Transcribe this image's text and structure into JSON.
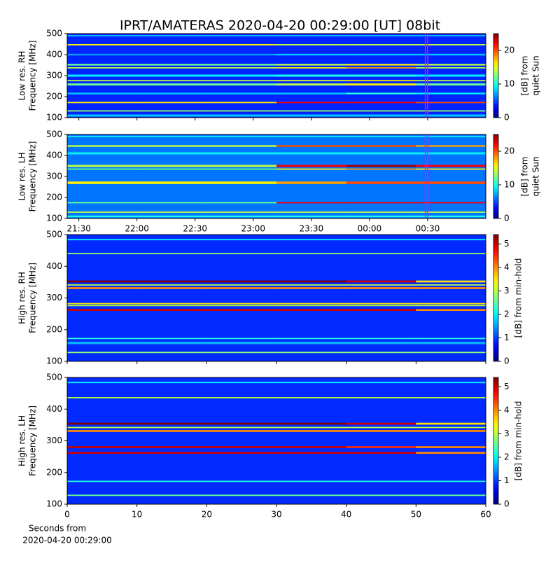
{
  "chart_data": [
    {
      "type": "heatmap",
      "title": "IPRT/AMATERAS 2020-04-20 00:29:00 [UT]   08bit",
      "ylabel": [
        "Low res. RH",
        "Frequency [MHz]"
      ],
      "sharex": 1,
      "xlim": [
        21.4,
        25.0
      ],
      "ylim": [
        100,
        500
      ],
      "yticks": [
        100,
        200,
        300,
        400,
        500
      ],
      "zlim": [
        0,
        25
      ],
      "zticks": [
        0,
        10,
        20
      ],
      "zlabel": [
        "[dB] from",
        "quiet Sun"
      ],
      "highlight": [
        24.48,
        24.5
      ],
      "highlight_color": "#ff00ff",
      "background": 4,
      "bands": [
        {
          "freq": 490,
          "width": 6,
          "values": [
            8,
            8,
            8,
            8,
            8,
            8
          ]
        },
        {
          "freq": 447,
          "width": 6,
          "values": [
            16,
            16,
            16,
            14,
            14,
            14
          ]
        },
        {
          "freq": 400,
          "width": 8,
          "values": [
            7,
            7,
            7,
            8,
            8,
            8
          ]
        },
        {
          "freq": 352,
          "width": 8,
          "values": [
            12,
            12,
            12,
            14,
            16,
            14
          ]
        },
        {
          "freq": 337,
          "width": 6,
          "values": [
            14,
            14,
            14,
            16,
            18,
            14
          ]
        },
        {
          "freq": 300,
          "width": 10,
          "values": [
            9,
            9,
            9,
            10,
            10,
            9
          ]
        },
        {
          "freq": 276,
          "width": 6,
          "values": [
            14,
            14,
            14,
            15,
            16,
            14
          ]
        },
        {
          "freq": 258,
          "width": 10,
          "values": [
            12,
            12,
            12,
            14,
            16,
            12
          ]
        },
        {
          "freq": 215,
          "width": 8,
          "values": [
            8,
            8,
            8,
            8,
            10,
            9
          ]
        },
        {
          "freq": 172,
          "width": 6,
          "values": [
            16,
            16,
            16,
            22,
            22,
            20
          ]
        },
        {
          "freq": 132,
          "width": 6,
          "values": [
            13,
            13,
            13,
            13,
            13,
            13
          ]
        },
        {
          "freq": 110,
          "width": 10,
          "values": [
            8,
            8,
            8,
            8,
            8,
            8
          ]
        }
      ]
    },
    {
      "type": "heatmap",
      "ylabel": [
        "Low res. LH",
        "Frequency [MHz]"
      ],
      "xlim": [
        21.4,
        25.0
      ],
      "xticks": [
        {
          "value": 21.5,
          "label": "21:30"
        },
        {
          "value": 22,
          "label": "22:00"
        },
        {
          "value": 22.5,
          "label": "22:30"
        },
        {
          "value": 23,
          "label": "23:00"
        },
        {
          "value": 23.5,
          "label": "23:30"
        },
        {
          "value": 24,
          "label": "00:00"
        },
        {
          "value": 24.5,
          "label": "00:30"
        }
      ],
      "ylim": [
        100,
        500
      ],
      "yticks": [
        100,
        200,
        300,
        400,
        500
      ],
      "zlim": [
        0,
        25
      ],
      "zticks": [
        0,
        10,
        20
      ],
      "zlabel": [
        "[dB] from",
        "quiet Sun"
      ],
      "highlight": [
        24.48,
        24.5
      ],
      "highlight_color": "#ff00ff",
      "background": 6,
      "bands": [
        {
          "freq": 490,
          "width": 6,
          "values": [
            9,
            9,
            9,
            9,
            9,
            9
          ]
        },
        {
          "freq": 445,
          "width": 8,
          "values": [
            14,
            14,
            14,
            20,
            20,
            18
          ]
        },
        {
          "freq": 410,
          "width": 10,
          "values": [
            9,
            9,
            9,
            9,
            9,
            9
          ]
        },
        {
          "freq": 350,
          "width": 10,
          "values": [
            14,
            14,
            14,
            22,
            24,
            22
          ]
        },
        {
          "freq": 335,
          "width": 6,
          "values": [
            12,
            12,
            12,
            16,
            18,
            16
          ]
        },
        {
          "freq": 270,
          "width": 12,
          "values": [
            16,
            16,
            16,
            18,
            20,
            20
          ]
        },
        {
          "freq": 175,
          "width": 6,
          "values": [
            12,
            12,
            12,
            22,
            22,
            22
          ]
        },
        {
          "freq": 130,
          "width": 6,
          "values": [
            14,
            14,
            14,
            14,
            14,
            14
          ]
        },
        {
          "freq": 110,
          "width": 8,
          "values": [
            10,
            10,
            10,
            10,
            10,
            10
          ]
        }
      ]
    },
    {
      "type": "heatmap",
      "ylabel": [
        "High res. RH",
        "Frequency [MHz]"
      ],
      "sharex": 3,
      "xlim": [
        0,
        60
      ],
      "ylim": [
        100,
        500
      ],
      "yticks": [
        100,
        200,
        300,
        400,
        500
      ],
      "zlim": [
        0,
        5.4
      ],
      "zticks": [
        0,
        1,
        2,
        3,
        4,
        5
      ],
      "zlabel": [
        "[dB] from min-hold"
      ],
      "background": 0.9,
      "bands": [
        {
          "freq": 484,
          "width": 4,
          "values": [
            2,
            2,
            2,
            2,
            2,
            2
          ]
        },
        {
          "freq": 440,
          "width": 4,
          "values": [
            2.8,
            2.8,
            2.8,
            2.8,
            2.8,
            2.8
          ]
        },
        {
          "freq": 352,
          "width": 6,
          "values": [
            5.4,
            5.4,
            5.4,
            5.4,
            5,
            3.5
          ]
        },
        {
          "freq": 341,
          "width": 4,
          "values": [
            3,
            3,
            3,
            3,
            3,
            3
          ]
        },
        {
          "freq": 331,
          "width": 6,
          "values": [
            4,
            4,
            4,
            4,
            4,
            4
          ]
        },
        {
          "freq": 282,
          "width": 4,
          "values": [
            3.5,
            3.5,
            3.5,
            3.5,
            3.5,
            3.5
          ]
        },
        {
          "freq": 276,
          "width": 4,
          "values": [
            3,
            3,
            3,
            3,
            3,
            3
          ]
        },
        {
          "freq": 262,
          "width": 6,
          "values": [
            5,
            5,
            5,
            5,
            5,
            4
          ]
        },
        {
          "freq": 172,
          "width": 4,
          "values": [
            2.2,
            2.2,
            2.2,
            2.2,
            2.2,
            2.2
          ]
        },
        {
          "freq": 158,
          "width": 8,
          "values": [
            1.6,
            1.6,
            1.6,
            1.6,
            1.6,
            1.6
          ]
        },
        {
          "freq": 128,
          "width": 4,
          "values": [
            2.8,
            2.8,
            2.8,
            2.8,
            2.8,
            2.8
          ]
        }
      ]
    },
    {
      "type": "heatmap",
      "ylabel": [
        "High res. LH",
        "Frequency [MHz]"
      ],
      "xlim": [
        0,
        60
      ],
      "xticks": [
        0,
        10,
        20,
        30,
        40,
        50,
        60
      ],
      "xlabel": [
        "Seconds from",
        "2020-04-20 00:29:00"
      ],
      "ylim": [
        100,
        500
      ],
      "yticks": [
        100,
        200,
        300,
        400,
        500
      ],
      "zlim": [
        0,
        5.4
      ],
      "zticks": [
        0,
        1,
        2,
        3,
        4,
        5
      ],
      "zlabel": [
        "[dB] from min-hold"
      ],
      "background": 0.9,
      "bands": [
        {
          "freq": 484,
          "width": 4,
          "values": [
            2,
            2,
            2,
            2,
            2,
            2
          ]
        },
        {
          "freq": 436,
          "width": 4,
          "values": [
            3,
            3,
            3,
            3,
            3,
            3
          ]
        },
        {
          "freq": 354,
          "width": 6,
          "values": [
            5.4,
            5.4,
            5.4,
            5.4,
            5,
            3.5
          ]
        },
        {
          "freq": 342,
          "width": 4,
          "values": [
            3,
            3,
            3,
            3,
            3,
            3
          ]
        },
        {
          "freq": 331,
          "width": 6,
          "values": [
            4,
            4,
            4,
            4,
            4,
            4
          ]
        },
        {
          "freq": 280,
          "width": 6,
          "values": [
            5,
            5,
            5,
            5,
            4.5,
            4
          ]
        },
        {
          "freq": 262,
          "width": 6,
          "values": [
            5,
            5,
            5,
            5,
            5,
            4
          ]
        },
        {
          "freq": 172,
          "width": 4,
          "values": [
            2.2,
            2.2,
            2.2,
            2.2,
            2.2,
            2.2
          ]
        },
        {
          "freq": 128,
          "width": 4,
          "values": [
            2.6,
            2.6,
            2.6,
            2.6,
            2.6,
            2.6
          ]
        }
      ]
    }
  ]
}
